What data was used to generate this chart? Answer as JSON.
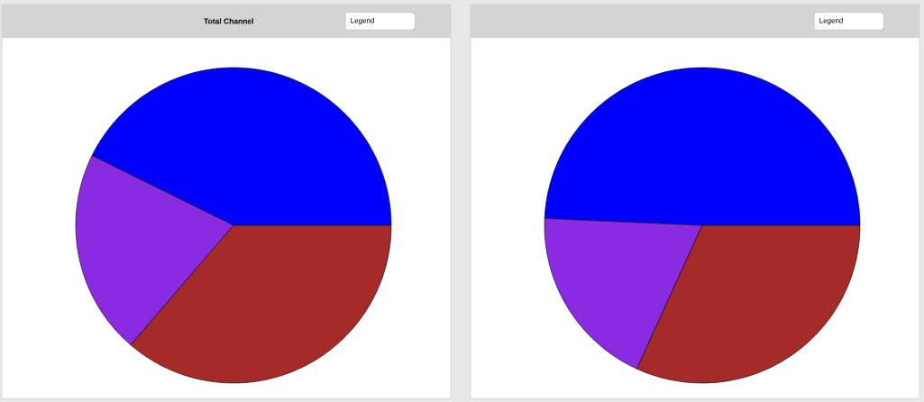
{
  "chart_data": [
    {
      "type": "pie",
      "title": "Total Channel",
      "categories": [
        null,
        null,
        null
      ],
      "values": [
        42.7,
        21.0,
        36.3
      ],
      "colors": [
        "#0000ff",
        "#8a2be2",
        "#a52a2a"
      ],
      "annotations": [
        "Legend"
      ]
    },
    {
      "type": "pie",
      "categories": [
        null,
        null,
        null
      ],
      "values": [
        49.3,
        18.9,
        31.8
      ],
      "colors": [
        "#0000ff",
        "#8a2be2",
        "#a52a2a"
      ],
      "annotations": [
        "Legend"
      ]
    }
  ]
}
